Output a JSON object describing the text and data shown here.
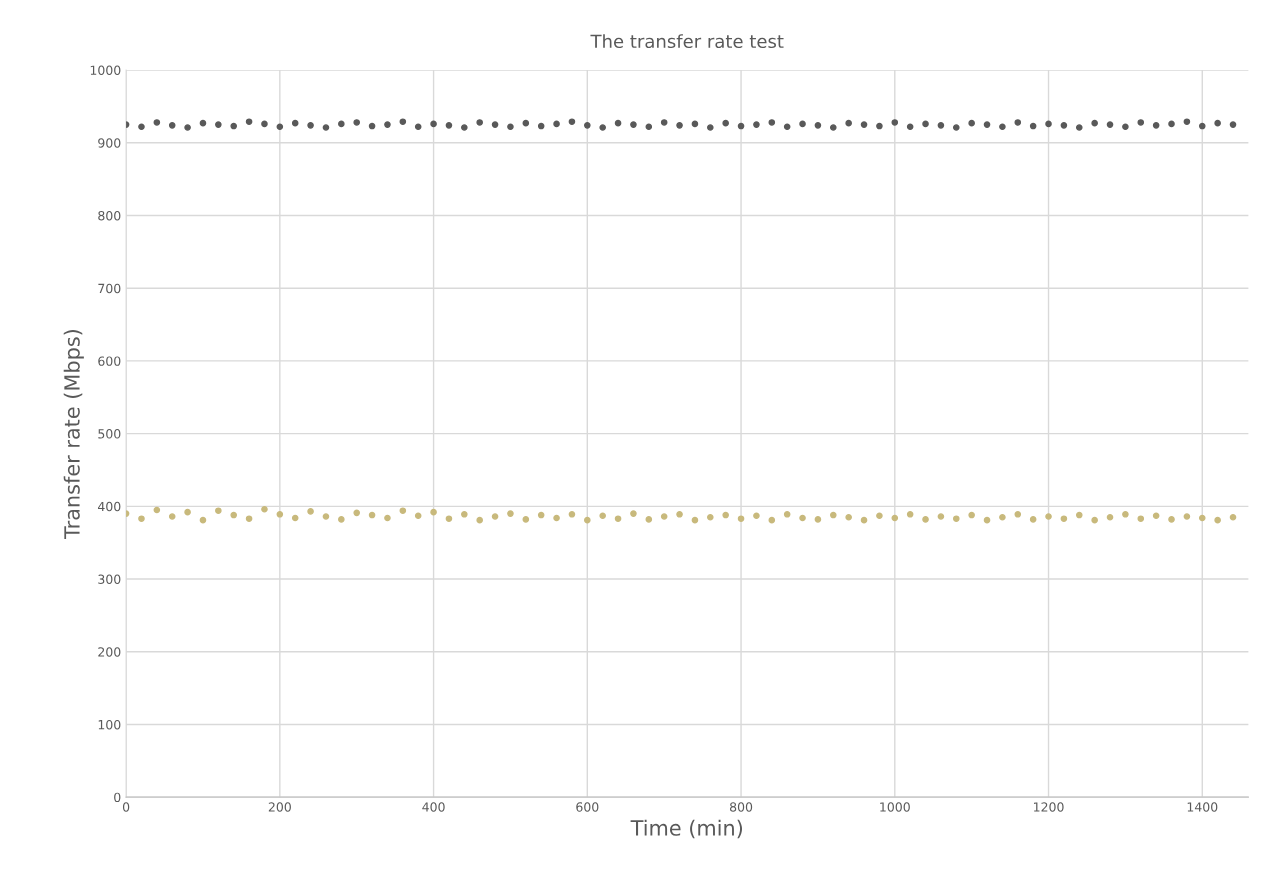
{
  "chart_data": {
    "type": "scatter",
    "title": "The transfer rate test",
    "xlabel": "Time (min)",
    "ylabel": "Transfer rate (Mbps)",
    "x": [
      0,
      20,
      40,
      60,
      80,
      100,
      120,
      140,
      160,
      180,
      200,
      220,
      240,
      260,
      280,
      300,
      320,
      340,
      360,
      380,
      400,
      420,
      440,
      460,
      480,
      500,
      520,
      540,
      560,
      580,
      600,
      620,
      640,
      660,
      680,
      700,
      720,
      740,
      760,
      780,
      800,
      820,
      840,
      860,
      880,
      900,
      920,
      940,
      960,
      980,
      1000,
      1020,
      1040,
      1060,
      1080,
      1100,
      1120,
      1140,
      1160,
      1180,
      1200,
      1220,
      1240,
      1260,
      1280,
      1300,
      1320,
      1340,
      1360,
      1380,
      1400,
      1420,
      1440
    ],
    "series": [
      {
        "color": "#595959",
        "values": [
          925,
          922,
          928,
          924,
          921,
          927,
          925,
          923,
          929,
          926,
          922,
          927,
          924,
          921,
          926,
          928,
          923,
          925,
          929,
          922,
          926,
          924,
          921,
          928,
          925,
          922,
          927,
          923,
          926,
          929,
          924,
          921,
          927,
          925,
          922,
          928,
          924,
          926,
          921,
          927,
          923,
          925,
          928,
          922,
          926,
          924,
          921,
          927,
          925,
          923,
          928,
          922,
          926,
          924,
          921,
          927,
          925,
          922,
          928,
          923,
          926,
          924,
          921,
          927,
          925,
          922,
          928,
          924,
          926,
          929,
          923,
          927,
          925
        ]
      },
      {
        "color": "#c8b97c",
        "values": [
          390,
          383,
          395,
          386,
          392,
          381,
          394,
          388,
          383,
          396,
          389,
          384,
          393,
          386,
          382,
          391,
          388,
          384,
          394,
          387,
          392,
          383,
          389,
          381,
          386,
          390,
          382,
          388,
          384,
          389,
          381,
          387,
          383,
          390,
          382,
          386,
          389,
          381,
          385,
          388,
          383,
          387,
          381,
          389,
          384,
          382,
          388,
          385,
          381,
          387,
          384,
          389,
          382,
          386,
          383,
          388,
          381,
          385,
          389,
          382,
          386,
          383,
          388,
          381,
          385,
          389,
          383,
          387,
          382,
          386,
          384,
          381,
          385
        ]
      }
    ],
    "xlim": [
      0,
      1460
    ],
    "xticks": [
      0,
      200,
      400,
      600,
      800,
      1000,
      1200,
      1400
    ],
    "ylim": [
      0,
      1000
    ],
    "yticks": [
      0,
      100,
      200,
      300,
      400,
      500,
      600,
      700,
      800,
      900,
      1000
    ],
    "grid": true,
    "marker": "circle",
    "legend": false
  }
}
